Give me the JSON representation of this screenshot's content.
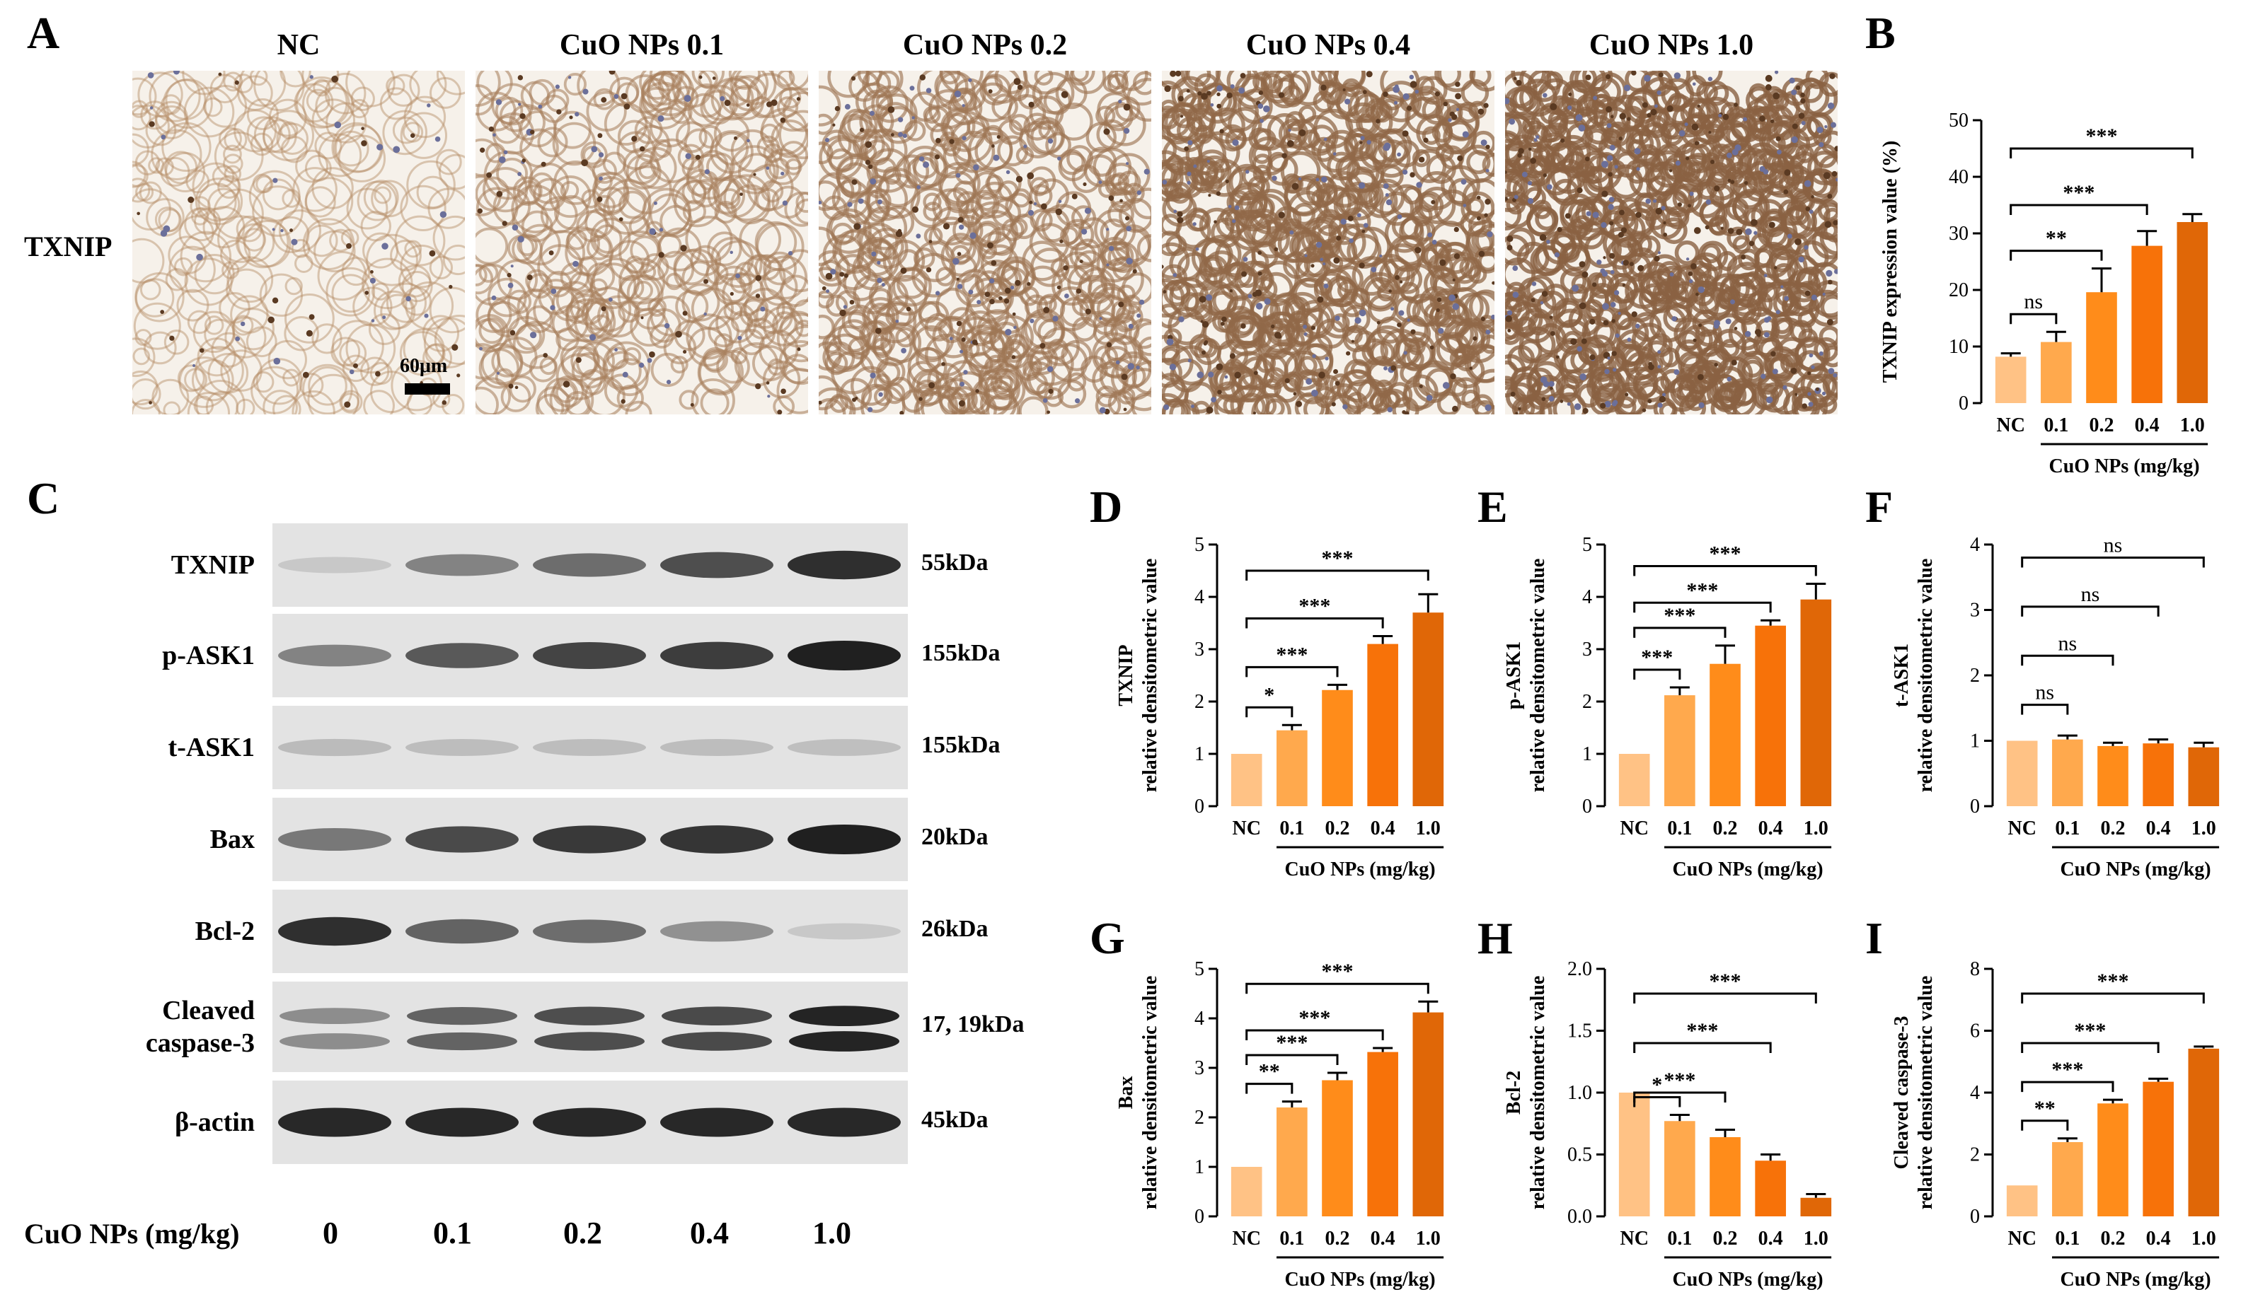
{
  "panel_letters": {
    "A": "A",
    "B": "B",
    "C": "C",
    "D": "D",
    "E": "E",
    "F": "F",
    "G": "G",
    "H": "H",
    "I": "I"
  },
  "ihc": {
    "row_label": "TXNIP",
    "scale_bar": "60μm",
    "columns": [
      "NC",
      "CuO NPs 0.1",
      "CuO NPs 0.2",
      "CuO NPs 0.4",
      "CuO NPs 1.0"
    ],
    "stain_intensity": [
      0.25,
      0.45,
      0.6,
      0.8,
      0.9
    ]
  },
  "blot": {
    "rows": [
      {
        "label": "TXNIP",
        "kda": "55kDa",
        "intensity": [
          0.12,
          0.45,
          0.55,
          0.7,
          0.85
        ]
      },
      {
        "label": "p-ASK1",
        "kda": "155kDa",
        "intensity": [
          0.45,
          0.65,
          0.75,
          0.78,
          0.92
        ]
      },
      {
        "label": "t-ASK1",
        "kda": "155kDa",
        "intensity": [
          0.18,
          0.17,
          0.17,
          0.17,
          0.16
        ]
      },
      {
        "label": "Bax",
        "kda": "20kDa",
        "intensity": [
          0.5,
          0.72,
          0.8,
          0.82,
          0.92
        ]
      },
      {
        "label": "Bcl-2",
        "kda": "26kDa",
        "intensity": [
          0.85,
          0.6,
          0.55,
          0.38,
          0.12
        ]
      },
      {
        "label": "Cleaved\ncaspase-3",
        "kda": "17, 19kDa",
        "intensity": [
          0.4,
          0.6,
          0.7,
          0.72,
          0.9
        ]
      },
      {
        "label": "β-actin",
        "kda": "45kDa",
        "intensity": [
          0.88,
          0.88,
          0.88,
          0.88,
          0.88
        ]
      }
    ],
    "dose_axis_label": "CuO NPs (mg/kg)",
    "doses": [
      "0",
      "0.1",
      "0.2",
      "0.4",
      "1.0"
    ]
  },
  "colors": [
    "#FFC285",
    "#FFA94D",
    "#FF8C1A",
    "#F77209",
    "#E06707"
  ],
  "chart_data": [
    {
      "id": "B",
      "type": "bar",
      "categories": [
        "NC",
        "0.1",
        "0.2",
        "0.4",
        "1.0"
      ],
      "values": [
        8.2,
        10.8,
        19.6,
        27.8,
        32.0
      ],
      "errors": [
        0.6,
        1.8,
        4.2,
        2.6,
        1.4
      ],
      "ylabel": "TXNIP expression value (%)",
      "xgroup_label": "CuO NPs (mg/kg)",
      "ylim": [
        0,
        50
      ],
      "yticks": [
        "0",
        "10",
        "20",
        "30",
        "40",
        "50"
      ],
      "sig": [
        {
          "to": 1,
          "text": "ns"
        },
        {
          "to": 2,
          "text": "**"
        },
        {
          "to": 3,
          "text": "***"
        },
        {
          "to": 4,
          "text": "***"
        }
      ]
    },
    {
      "id": "D",
      "type": "bar",
      "categories": [
        "NC",
        "0.1",
        "0.2",
        "0.4",
        "1.0"
      ],
      "values": [
        1.0,
        1.45,
        2.22,
        3.1,
        3.7
      ],
      "errors": [
        0.0,
        0.1,
        0.1,
        0.15,
        0.35
      ],
      "ylabel": "TXNIP\nrelative densitometric value",
      "xgroup_label": "CuO NPs (mg/kg)",
      "ylim": [
        0,
        5
      ],
      "yticks": [
        "0",
        "1",
        "2",
        "3",
        "4",
        "5"
      ],
      "sig": [
        {
          "to": 1,
          "text": "*"
        },
        {
          "to": 2,
          "text": "***"
        },
        {
          "to": 3,
          "text": "***"
        },
        {
          "to": 4,
          "text": "***"
        }
      ]
    },
    {
      "id": "E",
      "type": "bar",
      "categories": [
        "NC",
        "0.1",
        "0.2",
        "0.4",
        "1.0"
      ],
      "values": [
        1.0,
        2.12,
        2.72,
        3.45,
        3.95
      ],
      "errors": [
        0.0,
        0.15,
        0.35,
        0.1,
        0.3
      ],
      "ylabel": "p-ASK1\nrelative densitometric value",
      "xgroup_label": "CuO NPs (mg/kg)",
      "ylim": [
        0,
        5
      ],
      "yticks": [
        "0",
        "1",
        "2",
        "3",
        "4",
        "5"
      ],
      "sig": [
        {
          "to": 1,
          "text": "***"
        },
        {
          "to": 2,
          "text": "***"
        },
        {
          "to": 3,
          "text": "***"
        },
        {
          "to": 4,
          "text": "***"
        }
      ]
    },
    {
      "id": "F",
      "type": "bar",
      "categories": [
        "NC",
        "0.1",
        "0.2",
        "0.4",
        "1.0"
      ],
      "values": [
        1.0,
        1.02,
        0.92,
        0.96,
        0.9
      ],
      "errors": [
        0.0,
        0.06,
        0.05,
        0.06,
        0.07
      ],
      "ylabel": "t-ASK1\nrelative densitometric value",
      "xgroup_label": "CuO NPs (mg/kg)",
      "ylim": [
        0,
        4
      ],
      "yticks": [
        "0",
        "1",
        "2",
        "3",
        "4"
      ],
      "sig": [
        {
          "to": 1,
          "text": "ns"
        },
        {
          "to": 2,
          "text": "ns"
        },
        {
          "to": 3,
          "text": "ns"
        },
        {
          "to": 4,
          "text": "ns"
        }
      ]
    },
    {
      "id": "G",
      "type": "bar",
      "categories": [
        "NC",
        "0.1",
        "0.2",
        "0.4",
        "1.0"
      ],
      "values": [
        1.0,
        2.2,
        2.75,
        3.32,
        4.12
      ],
      "errors": [
        0.0,
        0.12,
        0.15,
        0.08,
        0.22
      ],
      "ylabel": "Bax\nrelative densitometric value",
      "xgroup_label": "CuO NPs (mg/kg)",
      "ylim": [
        0,
        5
      ],
      "yticks": [
        "0",
        "1",
        "2",
        "3",
        "4",
        "5"
      ],
      "sig": [
        {
          "to": 1,
          "text": "**"
        },
        {
          "to": 2,
          "text": "***"
        },
        {
          "to": 3,
          "text": "***"
        },
        {
          "to": 4,
          "text": "***"
        }
      ]
    },
    {
      "id": "H",
      "type": "bar",
      "categories": [
        "NC",
        "0.1",
        "0.2",
        "0.4",
        "1.0"
      ],
      "values": [
        1.0,
        0.77,
        0.64,
        0.45,
        0.15
      ],
      "errors": [
        0.0,
        0.05,
        0.06,
        0.05,
        0.03
      ],
      "ylabel": "Bcl-2\nrelative densitometric value",
      "xgroup_label": "CuO NPs (mg/kg)",
      "ylim": [
        0,
        2
      ],
      "yticks": [
        "0.0",
        "0.5",
        "1.0",
        "1.5",
        "2.0"
      ],
      "sig": [
        {
          "to": 1,
          "text": "*"
        },
        {
          "to": 2,
          "text": "***"
        },
        {
          "to": 3,
          "text": "***"
        },
        {
          "to": 4,
          "text": "***"
        }
      ]
    },
    {
      "id": "I",
      "type": "bar",
      "categories": [
        "NC",
        "0.1",
        "0.2",
        "0.4",
        "1.0"
      ],
      "values": [
        1.0,
        2.4,
        3.65,
        4.35,
        5.42
      ],
      "errors": [
        0.0,
        0.12,
        0.12,
        0.1,
        0.07
      ],
      "ylabel": "Cleaved caspase-3\nrelative densitometric value",
      "xgroup_label": "CuO NPs (mg/kg)",
      "ylim": [
        0,
        8
      ],
      "yticks": [
        "0",
        "2",
        "4",
        "6",
        "8"
      ],
      "sig": [
        {
          "to": 1,
          "text": "**"
        },
        {
          "to": 2,
          "text": "***"
        },
        {
          "to": 3,
          "text": "***"
        },
        {
          "to": 4,
          "text": "***"
        }
      ]
    }
  ]
}
